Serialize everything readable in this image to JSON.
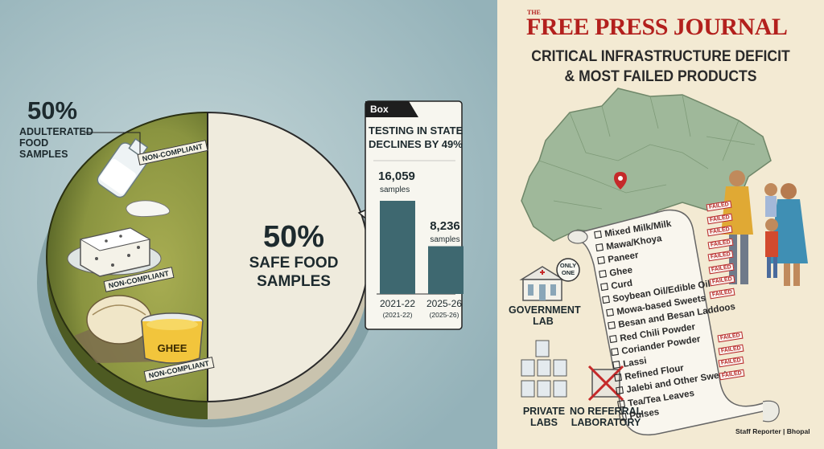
{
  "left_panel": {
    "adulterated_pct": "50%",
    "adulterated_label": "ADULTERATED FOOD SAMPLES",
    "safe_pct": "50%",
    "safe_label_line1": "SAFE FOOD",
    "safe_label_line2": "SAMPLES",
    "tag_label": "NON-COMPLIANT",
    "ghee_label": "GHEE",
    "colors": {
      "adulterated": "#8f9a3e",
      "safe": "#efebdd",
      "background": "#a9c3c9"
    }
  },
  "box": {
    "tag": "Box",
    "title_line1": "TESTING IN STATE",
    "title_line2": "DECLINES BY 49%",
    "bars": [
      {
        "value_label": "16,059",
        "unit": "samples",
        "value": 16059,
        "year": "2021-22",
        "year_sub": "(2021-22)"
      },
      {
        "value_label": "8,236",
        "unit": "samples",
        "value": 8236,
        "year": "2025-26",
        "year_sub": "(2025-26)"
      }
    ],
    "bar_color": "#3e6870"
  },
  "right_panel": {
    "masthead_the": "THE",
    "masthead": "FREE PRESS JOURNAL",
    "headline_line1": "CRITICAL INFRASTRUCTURE DEFICIT",
    "headline_line2": "& MOST FAILED PRODUCTS",
    "gov_lab_badge_line1": "ONLY",
    "gov_lab_badge_line2": "ONE",
    "gov_lab_line1": "GOVERNMENT",
    "gov_lab_line2": "LAB",
    "private_labs_line1": "PRIVATE",
    "private_labs_line2": "LABS",
    "no_referral_line1": "NO REFERRAL",
    "no_referral_line2": "LABORATORY",
    "failed_stamp": "FAILED",
    "products": [
      "Mixed Milk/Milk",
      "Mawa/Khoya",
      "Paneer",
      "Ghee",
      "Curd",
      "Soybean Oil/Edible Oil",
      "Mowa-based Sweets",
      "Besan and Besan Laddoos",
      "Red Chili Powder",
      "Coriander Powder",
      "Lassi",
      "Refined Flour",
      "Jalebi and Other Sweets",
      "Tea/Tea Leaves",
      "Pulses"
    ],
    "credit": "Staff Reporter | Bhopal",
    "colors": {
      "masthead": "#b3201d",
      "map": "#9fb89a"
    }
  }
}
